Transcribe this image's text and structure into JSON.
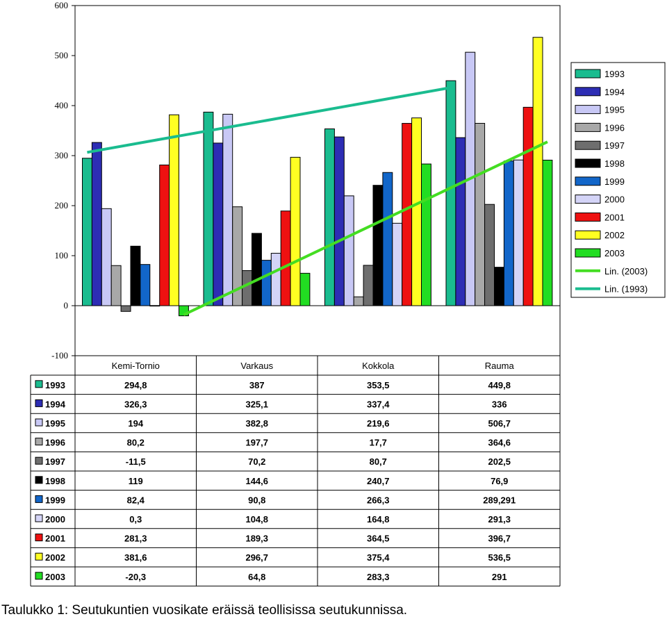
{
  "chart_data": {
    "type": "bar",
    "categories": [
      "Kemi-Tornio",
      "Varkaus",
      "Kokkola",
      "Rauma"
    ],
    "ylim": [
      -100,
      600
    ],
    "yticks": [
      600,
      500,
      400,
      300,
      200,
      100,
      0,
      -100
    ],
    "grid": false,
    "legend_position": "right",
    "series": [
      {
        "name": "1993",
        "color": "#1abc8f",
        "values": [
          294.8,
          387,
          353.5,
          449.8
        ],
        "labels": [
          "294,8",
          "387",
          "353,5",
          "449,8"
        ]
      },
      {
        "name": "1994",
        "color": "#2d2db4",
        "values": [
          326.3,
          325.1,
          337.4,
          336
        ],
        "labels": [
          "326,3",
          "325,1",
          "337,4",
          "336"
        ]
      },
      {
        "name": "1995",
        "color": "#c8c8f5",
        "values": [
          194,
          382.8,
          219.6,
          506.7
        ],
        "labels": [
          "194",
          "382,8",
          "219,6",
          "506,7"
        ]
      },
      {
        "name": "1996",
        "color": "#a8a8a8",
        "values": [
          80.2,
          197.7,
          17.7,
          364.6
        ],
        "labels": [
          "80,2",
          "197,7",
          "17,7",
          "364,6"
        ]
      },
      {
        "name": "1997",
        "color": "#6e6e6e",
        "values": [
          -11.5,
          70.2,
          80.7,
          202.5
        ],
        "labels": [
          "-11,5",
          "70,2",
          "80,7",
          "202,5"
        ]
      },
      {
        "name": "1998",
        "color": "#000000",
        "values": [
          119,
          144.6,
          240.7,
          76.9
        ],
        "labels": [
          "119",
          "144,6",
          "240,7",
          "76,9"
        ]
      },
      {
        "name": "1999",
        "color": "#1266c9",
        "values": [
          82.4,
          90.8,
          266.3,
          289.291
        ],
        "labels": [
          "82,4",
          "90,8",
          "266,3",
          "289,291"
        ]
      },
      {
        "name": "2000",
        "color": "#d4d4f7",
        "values": [
          0.3,
          104.8,
          164.8,
          291.3
        ],
        "labels": [
          "0,3",
          "104,8",
          "164,8",
          "291,3"
        ]
      },
      {
        "name": "2001",
        "color": "#ee1111",
        "values": [
          281.3,
          189.3,
          364.5,
          396.7
        ],
        "labels": [
          "281,3",
          "189,3",
          "364,5",
          "396,7"
        ]
      },
      {
        "name": "2002",
        "color": "#ffff22",
        "values": [
          381.6,
          296.7,
          375.4,
          536.5
        ],
        "labels": [
          "381,6",
          "296,7",
          "375,4",
          "536,5"
        ]
      },
      {
        "name": "2003",
        "color": "#22dd22",
        "values": [
          -20.3,
          64.8,
          283.3,
          291
        ],
        "labels": [
          "-20,3",
          "64,8",
          "283,3",
          "291"
        ]
      }
    ],
    "trendlines": [
      {
        "name": "Lin. (2003)",
        "color": "#44dd22",
        "series": "2003"
      },
      {
        "name": "Lin. (1993)",
        "color": "#1abc8f",
        "series": "1993"
      }
    ]
  },
  "caption": "Taulukko 1: Seutukuntien vuosikate eräissä teollisissa seutukunnissa."
}
